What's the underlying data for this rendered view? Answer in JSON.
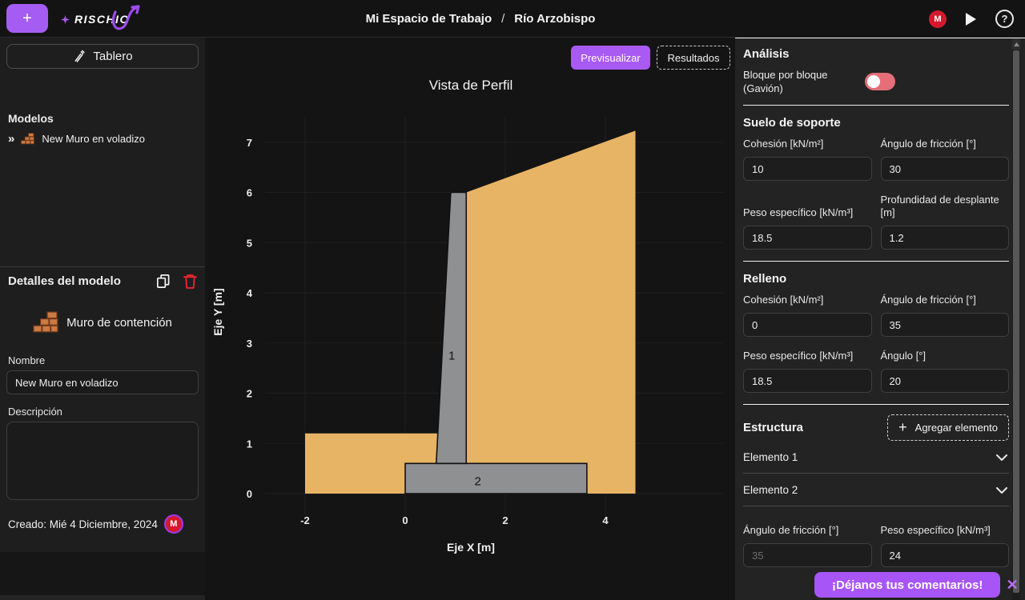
{
  "icons": {
    "plus": "+",
    "collapse": "»",
    "close": "✕",
    "help": "?"
  },
  "topbar": {
    "brand": "RISCHIO",
    "breadcrumb": {
      "workspace": "Mi Espacio de Trabajo",
      "separator": "/",
      "project": "Río Arzobispo"
    },
    "avatar_initial": "M"
  },
  "sidebar": {
    "dashboard_label": "Tablero",
    "models_heading": "Modelos",
    "model_name": "New Muro en voladizo",
    "details_heading": "Detalles del modelo",
    "model_type": "Muro de contención",
    "name_label": "Nombre",
    "name_value": "New Muro en voladizo",
    "description_label": "Descripción",
    "description_value": "",
    "created_label": "Creado: Mié 4 Diciembre, 2024",
    "avatar_initial": "M"
  },
  "main": {
    "preview_label": "Previsualizar",
    "results_label": "Resultados"
  },
  "chart_data": {
    "type": "area",
    "title": "Vista de Perfil",
    "xlabel": "Eje X [m]",
    "ylabel": "Eje Y [m]",
    "x_ticks": [
      -2,
      0,
      2,
      4
    ],
    "y_ticks": [
      0,
      1,
      2,
      3,
      4,
      5,
      6,
      7
    ],
    "xlim": [
      -2.8,
      6.35
    ],
    "ylim": [
      -0.43,
      7.5
    ],
    "grid": true,
    "grid_color": "#1f1f23",
    "soil_color": "#e7b465",
    "structure_color": "#8e9092",
    "outline_color": "#111111",
    "polygons": [
      {
        "name": "soil-left",
        "fill": "soil",
        "outline": false,
        "points": [
          [
            -2.0,
            0
          ],
          [
            -2.0,
            1.2
          ],
          [
            0.68,
            1.2
          ],
          [
            0.68,
            0
          ]
        ]
      },
      {
        "name": "soil-backfill",
        "fill": "soil",
        "outline": false,
        "points": [
          [
            1.22,
            6.0
          ],
          [
            4.6,
            7.23
          ],
          [
            4.6,
            0
          ],
          [
            3.63,
            0
          ],
          [
            3.63,
            0.6
          ],
          [
            1.22,
            0.6
          ]
        ]
      },
      {
        "name": "element-2-footing",
        "fill": "structure",
        "outline": true,
        "label": "2",
        "label_pos": [
          1.45,
          0.17
        ],
        "points": [
          [
            0,
            0
          ],
          [
            3.63,
            0
          ],
          [
            3.63,
            0.6
          ],
          [
            0,
            0.6
          ]
        ]
      },
      {
        "name": "element-1-stem",
        "fill": "structure",
        "outline": true,
        "label": "1",
        "label_pos": [
          0.93,
          2.67
        ],
        "points": [
          [
            0.62,
            0.6
          ],
          [
            1.22,
            0.6
          ],
          [
            1.22,
            6.0
          ],
          [
            0.91,
            6.0
          ]
        ]
      }
    ]
  },
  "panel": {
    "heading": "Análisis",
    "toggle_label": "Bloque por bloque (Gavión)",
    "toggle_state": "off",
    "support_soil": {
      "heading": "Suelo de soporte",
      "fields": [
        {
          "label": "Cohesión [kN/m²]",
          "value": "10"
        },
        {
          "label": "Ángulo de fricción [°]",
          "value": "30"
        },
        {
          "label": "Peso específico [kN/m³]",
          "value": "18.5"
        },
        {
          "label": "Profundidad de desplante [m]",
          "value": "1.2"
        }
      ]
    },
    "backfill": {
      "heading": "Relleno",
      "fields": [
        {
          "label": "Cohesión [kN/m²]",
          "value": "0"
        },
        {
          "label": "Ángulo de fricción [°]",
          "value": "35"
        },
        {
          "label": "Peso específico [kN/m³]",
          "value": "18.5"
        },
        {
          "label": "Ángulo [°]",
          "value": "20"
        }
      ]
    },
    "structure": {
      "heading": "Estructura",
      "add_button": "Agregar elemento",
      "elements": [
        {
          "label": "Elemento 1"
        },
        {
          "label": "Elemento 2"
        }
      ],
      "fields": [
        {
          "label": "Ángulo de fricción [°]",
          "placeholder": "35",
          "value": ""
        },
        {
          "label": "Peso específico [kN/m³]",
          "value": "24"
        }
      ]
    }
  },
  "banner": {
    "text": "¡Déjanos tus comentarios!"
  }
}
